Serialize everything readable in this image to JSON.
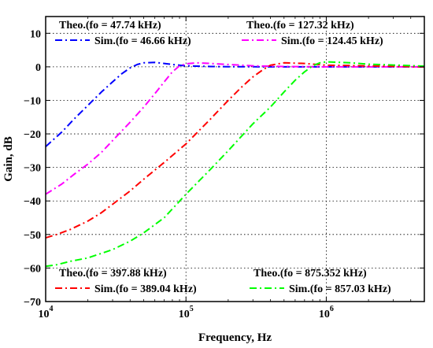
{
  "chart_data": {
    "type": "line",
    "xlabel": "Frequency, Hz",
    "ylabel": "Gain, dB",
    "xscale": "log",
    "xlim": [
      10000,
      5000000
    ],
    "ylim": [
      -70,
      15
    ],
    "yticks": [
      10,
      0,
      -10,
      -20,
      -30,
      -40,
      -50,
      -60,
      -70
    ],
    "ytick_labels": [
      "10",
      "0",
      "−10",
      "−20",
      "−30",
      "−40",
      "−50",
      "−60",
      "−70"
    ],
    "xticks": [
      {
        "value": 10000,
        "base": "10",
        "exp": "4"
      },
      {
        "value": 100000,
        "base": "10",
        "exp": "5"
      },
      {
        "value": 1000000,
        "base": "10",
        "exp": "6"
      }
    ],
    "grid": true,
    "legend_groups": [
      {
        "theo_label": "Theo.(fo = 47.74 kHz)",
        "sim_label": "Sim.(fo = 46.66 kHz)",
        "color": "#0000ff"
      },
      {
        "theo_label": "Theo.(fo = 127.32 kHz)",
        "sim_label": "Sim.(fo = 124.45 kHz)",
        "color": "#ff00ff"
      },
      {
        "theo_label": "Theo.(fo = 397.88 kHz)",
        "sim_label": "Sim.(fo = 389.04 kHz)",
        "color": "#ff0000"
      },
      {
        "theo_label": "Theo.(fo = 875.352 kHz)",
        "sim_label": "Sim.(fo = 857.03 kHz)",
        "color": "#00ff00"
      }
    ],
    "series": [
      {
        "color": "#0000ff",
        "style": "dashdot",
        "x": [
          10000,
          13000,
          16000,
          20000,
          25000,
          30000,
          35000,
          40000,
          45000,
          50000,
          60000,
          70000,
          80000,
          100000,
          150000,
          200000,
          500000,
          1000000,
          5000000
        ],
        "y": [
          -23.8,
          -19.5,
          -15.5,
          -11.5,
          -7.5,
          -4.5,
          -2,
          -0.3,
          0.7,
          1.2,
          1.3,
          1.0,
          0.7,
          0.3,
          0.1,
          0.05,
          0,
          0,
          0
        ]
      },
      {
        "color": "#ff00ff",
        "style": "dashdot",
        "x": [
          10000,
          13000,
          16000,
          20000,
          25000,
          30000,
          40000,
          50000,
          60000,
          70000,
          80000,
          90000,
          100000,
          120000,
          150000,
          200000,
          300000,
          500000,
          1000000,
          5000000
        ],
        "y": [
          -38,
          -35,
          -32,
          -29,
          -25.5,
          -22,
          -16.5,
          -12,
          -8,
          -4.5,
          -1.5,
          0.3,
          0.9,
          1.2,
          1.0,
          0.7,
          0.3,
          0.1,
          0,
          0
        ]
      },
      {
        "color": "#ff0000",
        "style": "dashdot",
        "x": [
          10000,
          12000,
          15000,
          20000,
          25000,
          30000,
          40000,
          50000,
          70000,
          100000,
          150000,
          200000,
          250000,
          300000,
          350000,
          400000,
          500000,
          700000,
          1000000,
          5000000
        ],
        "y": [
          -51,
          -50,
          -48.5,
          -46,
          -43.5,
          -41,
          -37,
          -33.5,
          -28.5,
          -23,
          -15.5,
          -10,
          -6,
          -3,
          -1,
          0.5,
          1.2,
          1.0,
          0.5,
          0
        ]
      },
      {
        "color": "#00ff00",
        "style": "dashdot",
        "x": [
          10000,
          12000,
          15000,
          20000,
          30000,
          40000,
          50000,
          70000,
          100000,
          150000,
          200000,
          300000,
          400000,
          500000,
          600000,
          700000,
          800000,
          900000,
          1000000,
          1500000,
          2000000,
          5000000
        ],
        "y": [
          -59.5,
          -59,
          -58,
          -57,
          -54.5,
          -52,
          -49.5,
          -45,
          -38,
          -30.5,
          -25,
          -17,
          -12,
          -7.5,
          -4,
          -1.5,
          0.3,
          1.2,
          1.5,
          1.2,
          0.8,
          0.2
        ]
      }
    ]
  }
}
